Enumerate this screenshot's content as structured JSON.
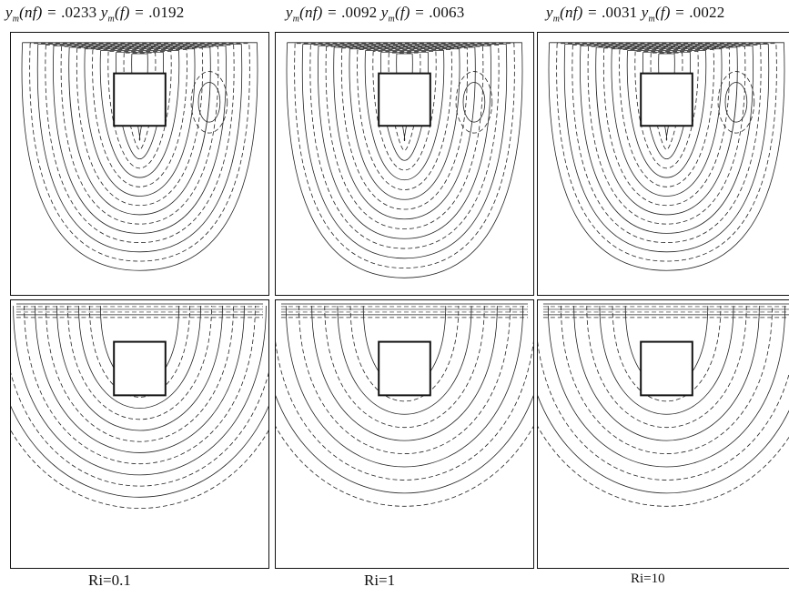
{
  "columns": [
    {
      "psi_nf_value": ".0233",
      "psi_f_value": ".0192",
      "ri_label": "Ri=0.1"
    },
    {
      "psi_nf_value": ".0092",
      "psi_f_value": ".0063",
      "ri_label": "Ri=1"
    },
    {
      "psi_nf_value": ".0031",
      "psi_f_value": ".0022",
      "ri_label": "Ri=10"
    }
  ],
  "symbols": {
    "psi": "y",
    "sub": "m",
    "nf": "(nf) = ",
    "f": "(f) = "
  },
  "legend_styles": {
    "solid": "nanofluid",
    "dashed": "fluid"
  },
  "colors": {
    "line": "#222222",
    "frame": "#111111"
  }
}
